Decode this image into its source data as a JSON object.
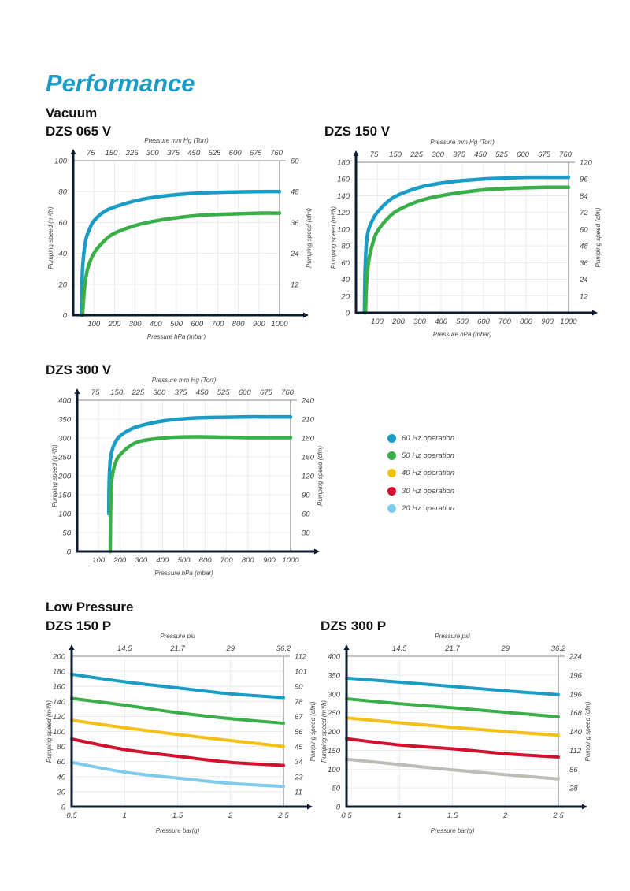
{
  "page": {
    "title": "Performance",
    "sections": {
      "vacuum": "Vacuum",
      "low_pressure": "Low Pressure"
    }
  },
  "legend": [
    {
      "label": "60 Hz operation",
      "color": "#1a9cc4"
    },
    {
      "label": "50 Hz operation",
      "color": "#3aae49"
    },
    {
      "label": "40 Hz operation",
      "color": "#f4c016"
    },
    {
      "label": "30 Hz operation",
      "color": "#d2112e"
    },
    {
      "label": "20 Hz operation",
      "color": "#7ecbeb"
    }
  ],
  "chart_data": [
    {
      "id": "dzs065v",
      "type": "line",
      "title": "DZS 065 V",
      "xlabel": "Pressure hPa (mbar)",
      "x2label": "Pressure mm Hg (Torr)",
      "ylabel": "Pumping speed (m³/h)",
      "y2label": "Pumping speed (cfm)",
      "xlim": [
        0,
        1000
      ],
      "ylim": [
        0,
        100
      ],
      "xticks": [
        100,
        200,
        300,
        400,
        500,
        600,
        700,
        800,
        900,
        1000
      ],
      "x2ticks": [
        "75",
        "150",
        "225",
        "300",
        "375",
        "450",
        "525",
        "600",
        "675",
        "760"
      ],
      "yticks": [
        0,
        20,
        40,
        60,
        80,
        100
      ],
      "y2ticks": [
        "",
        "12",
        "24",
        "36",
        "48",
        "60"
      ],
      "grid": true,
      "series": [
        {
          "name": "60 Hz operation",
          "color": "#1a9cc4",
          "x": [
            40,
            45,
            60,
            80,
            100,
            150,
            200,
            300,
            400,
            500,
            600,
            700,
            800,
            900,
            1000
          ],
          "y": [
            0,
            30,
            48,
            56,
            61,
            67,
            70,
            74,
            76.5,
            78,
            79,
            79.5,
            79.8,
            80,
            80
          ]
        },
        {
          "name": "50 Hz operation",
          "color": "#3aae49",
          "x": [
            45,
            55,
            70,
            100,
            150,
            200,
            300,
            400,
            500,
            600,
            700,
            800,
            900,
            1000
          ],
          "y": [
            0,
            18,
            30,
            40,
            48,
            53,
            58,
            61,
            63,
            64.5,
            65.2,
            65.6,
            66,
            66
          ]
        }
      ]
    },
    {
      "id": "dzs150v",
      "type": "line",
      "title": "DZS 150 V",
      "xlabel": "Pressure hPa (mbar)",
      "x2label": "Pressure mm Hg (Torr)",
      "ylabel": "Pumping speed (m³/h)",
      "y2label": "Pumping speed (cfm)",
      "xlim": [
        0,
        1000
      ],
      "ylim": [
        0,
        180
      ],
      "xticks": [
        100,
        200,
        300,
        400,
        500,
        600,
        700,
        800,
        900,
        1000
      ],
      "x2ticks": [
        "75",
        "150",
        "225",
        "300",
        "375",
        "450",
        "525",
        "600",
        "675",
        "760"
      ],
      "yticks": [
        0,
        20,
        40,
        60,
        80,
        100,
        120,
        140,
        160,
        180
      ],
      "y2ticks": [
        "",
        "12",
        "24",
        "36",
        "48",
        "60",
        "72",
        "84",
        "96",
        "120"
      ],
      "grid": true,
      "series": [
        {
          "name": "60 Hz operation",
          "color": "#1a9cc4",
          "x": [
            40,
            43,
            50,
            60,
            80,
            100,
            150,
            200,
            300,
            400,
            500,
            600,
            700,
            800,
            900,
            1000
          ],
          "y": [
            0,
            50,
            85,
            100,
            112,
            120,
            133,
            141,
            150,
            155,
            158,
            160,
            161,
            162,
            162,
            162
          ]
        },
        {
          "name": "50 Hz operation",
          "color": "#3aae49",
          "x": [
            45,
            50,
            60,
            80,
            100,
            150,
            200,
            300,
            400,
            500,
            600,
            700,
            800,
            900,
            1000
          ],
          "y": [
            0,
            35,
            62,
            84,
            97,
            113,
            123,
            134,
            140,
            144,
            147,
            148.5,
            149.5,
            150,
            150
          ]
        }
      ]
    },
    {
      "id": "dzs300v",
      "type": "line",
      "title": "DZS 300 V",
      "xlabel": "Pressure hPa (mbar)",
      "x2label": "Pressure mm Hg (Torr)",
      "ylabel": "Pumping speed (m³/h)",
      "y2label": "Pumping speed (cfm)",
      "xlim": [
        0,
        1000
      ],
      "ylim": [
        0,
        400
      ],
      "xticks": [
        100,
        200,
        300,
        400,
        500,
        600,
        700,
        800,
        900,
        1000
      ],
      "x2ticks": [
        "75",
        "150",
        "225",
        "300",
        "375",
        "450",
        "525",
        "600",
        "675",
        "760"
      ],
      "yticks": [
        0,
        50,
        100,
        150,
        200,
        250,
        300,
        350,
        400
      ],
      "y2ticks": [
        "",
        "30",
        "60",
        "90",
        "120",
        "150",
        "180",
        "210",
        "240"
      ],
      "grid": true,
      "series": [
        {
          "name": "60 Hz operation",
          "color": "#1a9cc4",
          "x": [
            148,
            150,
            155,
            165,
            180,
            200,
            250,
            300,
            400,
            500,
            600,
            700,
            800,
            900,
            1000
          ],
          "y": [
            100,
            190,
            240,
            270,
            290,
            305,
            323,
            333,
            345,
            351,
            354,
            355,
            356,
            356,
            356
          ]
        },
        {
          "name": "50 Hz operation",
          "color": "#3aae49",
          "x": [
            155,
            158,
            165,
            180,
            200,
            250,
            300,
            400,
            500,
            600,
            700,
            800,
            900,
            1000
          ],
          "y": [
            0,
            150,
            200,
            235,
            255,
            280,
            292,
            300,
            303,
            303,
            302,
            301,
            301,
            301
          ]
        }
      ]
    },
    {
      "id": "dzs150p",
      "type": "line",
      "title": "DZS 150 P",
      "xlabel": "Pressure bar(g)",
      "x2label": "Pressure psi",
      "ylabel": "Pumping speed (m³/h)",
      "y2label": "Pumping speed (cfm)",
      "xlim": [
        0.5,
        2.5
      ],
      "ylim": [
        0,
        200
      ],
      "xticks": [
        0.5,
        1,
        1.5,
        2,
        2.5
      ],
      "x2ticks": [
        "",
        "14.5",
        "21.7",
        "29",
        "36.2"
      ],
      "yticks": [
        0,
        20,
        40,
        60,
        80,
        100,
        120,
        140,
        160,
        180,
        200
      ],
      "y2ticks": [
        "",
        "11",
        "23",
        "34",
        "45",
        "56",
        "67",
        "78",
        "90",
        "101",
        "112"
      ],
      "grid": true,
      "series": [
        {
          "name": "60 Hz operation",
          "color": "#1a9cc4",
          "x": [
            0.5,
            1,
            1.5,
            2,
            2.5
          ],
          "y": [
            176,
            166,
            158,
            150,
            145
          ]
        },
        {
          "name": "50 Hz operation",
          "color": "#3aae49",
          "x": [
            0.5,
            1,
            1.5,
            2,
            2.5
          ],
          "y": [
            144,
            135,
            125,
            117,
            111
          ]
        },
        {
          "name": "40 Hz operation",
          "color": "#f4c016",
          "x": [
            0.5,
            1,
            1.5,
            2,
            2.5
          ],
          "y": [
            115,
            105,
            96,
            88,
            80
          ]
        },
        {
          "name": "30 Hz operation",
          "color": "#d2112e",
          "x": [
            0.5,
            1,
            1.5,
            2,
            2.5
          ],
          "y": [
            90,
            76,
            67,
            59,
            55
          ]
        },
        {
          "name": "20 Hz operation",
          "color": "#7ecbeb",
          "x": [
            0.5,
            1,
            1.5,
            2,
            2.5
          ],
          "y": [
            59,
            46,
            38,
            31,
            27
          ]
        }
      ]
    },
    {
      "id": "dzs300p",
      "type": "line",
      "title": "DZS 300 P",
      "xlabel": "Pressure bar(g)",
      "x2label": "Pressure psi",
      "ylabel": "Pumping speed (m³/h)",
      "y2label": "Pumping speed (cfm)",
      "xlim": [
        0.5,
        2.5
      ],
      "ylim": [
        0,
        400
      ],
      "xticks": [
        0.5,
        1,
        1.5,
        2,
        2.5
      ],
      "x2ticks": [
        "",
        "14.5",
        "21.7",
        "29",
        "36.2"
      ],
      "yticks": [
        0,
        50,
        100,
        150,
        200,
        250,
        300,
        350,
        400
      ],
      "y2ticks": [
        "",
        "28",
        "56",
        "112",
        "140",
        "168",
        "196",
        "196",
        "224"
      ],
      "grid": true,
      "series": [
        {
          "name": "60 Hz operation",
          "color": "#1a9cc4",
          "x": [
            0.5,
            1,
            1.5,
            2,
            2.5
          ],
          "y": [
            342,
            331,
            320,
            308,
            298
          ]
        },
        {
          "name": "50 Hz operation",
          "color": "#3aae49",
          "x": [
            0.5,
            1,
            1.5,
            2,
            2.5
          ],
          "y": [
            287,
            274,
            263,
            251,
            239
          ]
        },
        {
          "name": "40 Hz operation",
          "color": "#f4c016",
          "x": [
            0.5,
            1,
            1.5,
            2,
            2.5
          ],
          "y": [
            236,
            223,
            211,
            200,
            190
          ]
        },
        {
          "name": "30 Hz operation",
          "color": "#d2112e",
          "x": [
            0.5,
            1,
            1.5,
            2,
            2.5
          ],
          "y": [
            181,
            164,
            154,
            141,
            132
          ]
        },
        {
          "name": "20 Hz operation",
          "color": "#bdbdb8",
          "x": [
            0.5,
            1,
            1.5,
            2,
            2.5
          ],
          "y": [
            126,
            112,
            98,
            85,
            74
          ]
        }
      ]
    }
  ]
}
